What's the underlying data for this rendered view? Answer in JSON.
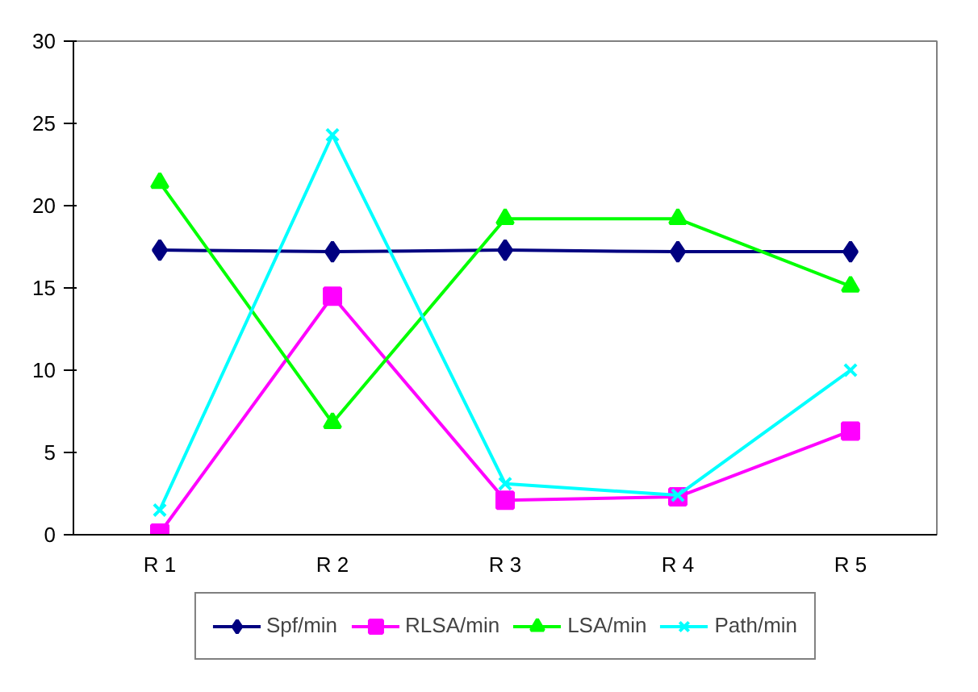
{
  "chart_data": {
    "type": "line",
    "categories": [
      "R 1",
      "R 2",
      "R 3",
      "R 4",
      "R 5"
    ],
    "series": [
      {
        "name": "Spf/min",
        "color": "#000080",
        "marker": "diamond",
        "values": [
          17.3,
          17.2,
          17.3,
          17.2,
          17.2
        ]
      },
      {
        "name": "RLSA/min",
        "color": "#ff00ff",
        "marker": "square",
        "values": [
          0.1,
          14.5,
          2.1,
          2.3,
          6.3
        ]
      },
      {
        "name": "LSA/min",
        "color": "#00ff00",
        "marker": "triangle",
        "values": [
          21.4,
          6.8,
          19.2,
          19.2,
          15.1
        ]
      },
      {
        "name": "Path/min",
        "color": "#00ffff",
        "marker": "cross",
        "values": [
          1.5,
          24.3,
          3.1,
          2.4,
          10.0
        ]
      }
    ],
    "ylim": [
      0,
      30
    ],
    "yticks": [
      0,
      5,
      10,
      15,
      20,
      25,
      30
    ],
    "grid": false,
    "legend": "bottom"
  }
}
